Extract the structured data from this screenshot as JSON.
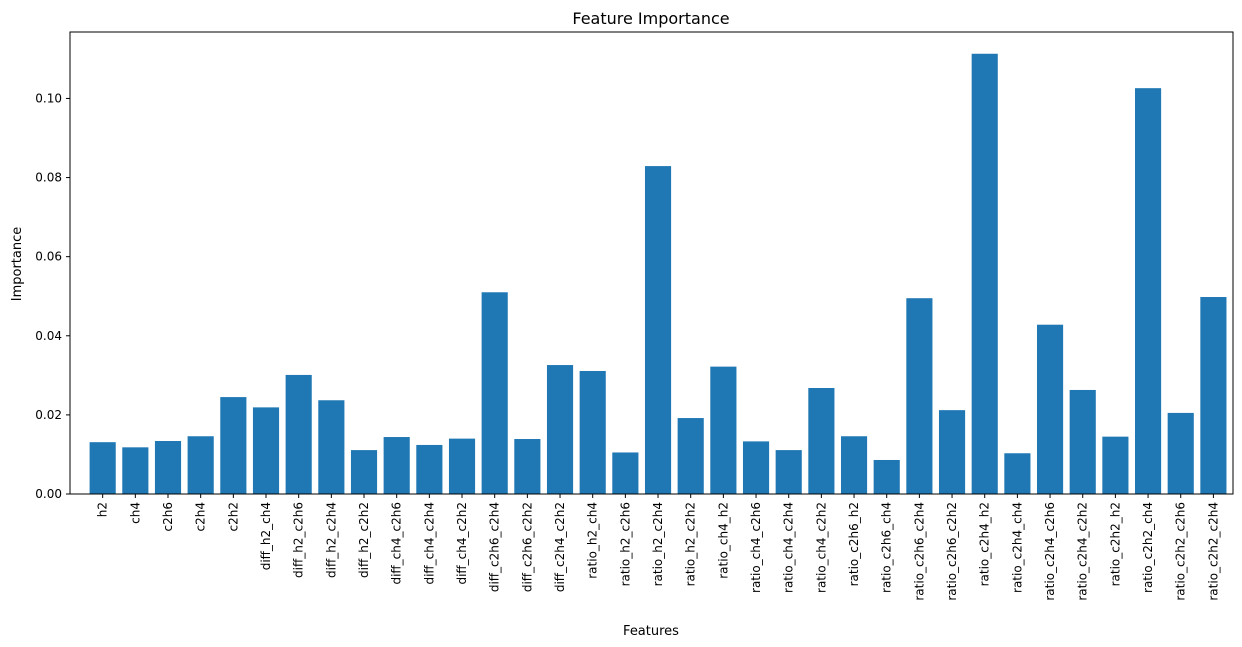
{
  "chart_data": {
    "type": "bar",
    "title": "Feature Importance",
    "xlabel": "Features",
    "ylabel": "Importance",
    "ylim": [
      0,
      0.1168
    ],
    "yticks": [
      "0.00",
      "0.02",
      "0.04",
      "0.06",
      "0.08",
      "0.10"
    ],
    "grid": false,
    "bar_color": "#1f77b4",
    "categories": [
      "h2",
      "ch4",
      "c2h6",
      "c2h4",
      "c2h2",
      "diff_h2_ch4",
      "diff_h2_c2h6",
      "diff_h2_c2h4",
      "diff_h2_c2h2",
      "diff_ch4_c2h6",
      "diff_ch4_c2h4",
      "diff_ch4_c2h2",
      "diff_c2h6_c2h4",
      "diff_c2h6_c2h2",
      "diff_c2h4_c2h2",
      "ratio_h2_ch4",
      "ratio_h2_c2h6",
      "ratio_h2_c2h4",
      "ratio_h2_c2h2",
      "ratio_ch4_h2",
      "ratio_ch4_c2h6",
      "ratio_ch4_c2h4",
      "ratio_ch4_c2h2",
      "ratio_c2h6_h2",
      "ratio_c2h6_ch4",
      "ratio_c2h6_c2h4",
      "ratio_c2h6_c2h2",
      "ratio_c2h4_h2",
      "ratio_c2h4_ch4",
      "ratio_c2h4_c2h6",
      "ratio_c2h4_c2h2",
      "ratio_c2h2_h2",
      "ratio_c2h2_ch4",
      "ratio_c2h2_c2h6",
      "ratio_c2h2_c2h4"
    ],
    "values": [
      0.0131,
      0.0118,
      0.0134,
      0.0146,
      0.0245,
      0.0219,
      0.0301,
      0.0237,
      0.0111,
      0.0144,
      0.0124,
      0.014,
      0.051,
      0.0139,
      0.0326,
      0.0311,
      0.0105,
      0.0829,
      0.0192,
      0.0322,
      0.0133,
      0.0111,
      0.0268,
      0.0146,
      0.0086,
      0.0495,
      0.0212,
      0.1113,
      0.0103,
      0.0428,
      0.0263,
      0.0145,
      0.1026,
      0.0205,
      0.0498
    ]
  }
}
